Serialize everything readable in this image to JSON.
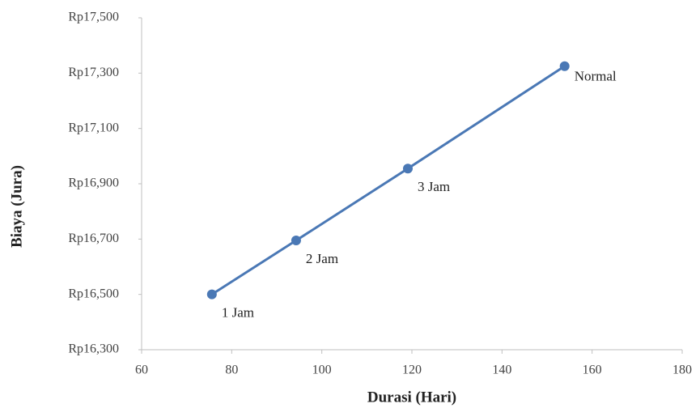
{
  "chart_data": {
    "type": "line",
    "x_label": "Durasi (Hari)",
    "y_label": "Biaya (Jura)",
    "x": [
      75.6,
      94.3,
      119.1,
      153.9
    ],
    "point_labels": [
      "1 Jam",
      "2 Jam",
      "3 Jam",
      "Normal"
    ],
    "series": [
      {
        "color": "#4a78b5",
        "values": [
          16500,
          16695,
          16955,
          17325
        ]
      }
    ],
    "xlim": [
      60,
      180
    ],
    "xticks": [
      60,
      80,
      100,
      120,
      140,
      160,
      180
    ],
    "ylim": [
      16300,
      17500
    ],
    "yticks": [
      {
        "value": 16300,
        "label": "Rp16,300"
      },
      {
        "value": 16500,
        "label": "Rp16,500"
      },
      {
        "value": 16700,
        "label": "Rp16,700"
      },
      {
        "value": 16900,
        "label": "Rp16,900"
      },
      {
        "value": 17100,
        "label": "Rp17,100"
      },
      {
        "value": 17300,
        "label": "Rp17,300"
      },
      {
        "value": 17500,
        "label": "Rp17,500"
      }
    ],
    "grid": false
  }
}
